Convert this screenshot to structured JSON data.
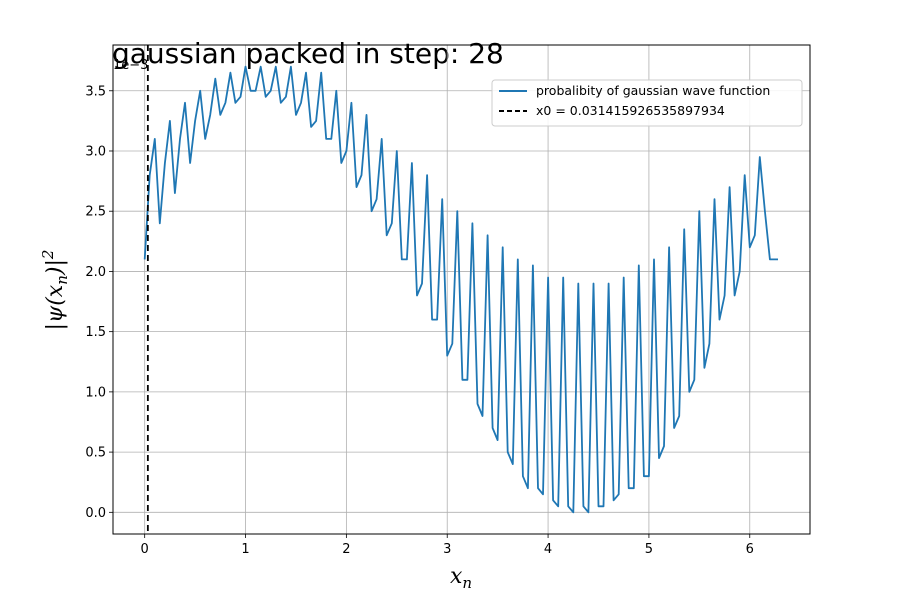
{
  "chart_data": {
    "type": "line",
    "title": "gaussian packed in step: 28",
    "xlabel": "x_n",
    "ylabel": "|ψ(x_n)|^2",
    "y_scale_note": "1e−3",
    "xlim": [
      -0.3142,
      6.5973
    ],
    "ylim": [
      -0.00018,
      0.00388
    ],
    "x_ticks": [
      0,
      1,
      2,
      3,
      4,
      5,
      6
    ],
    "y_ticks": [
      0.0,
      0.0005,
      0.001,
      0.0015,
      0.002,
      0.0025,
      0.003,
      0.0035
    ],
    "y_tick_labels": [
      "0.0",
      "0.5",
      "1.0",
      "1.5",
      "2.0",
      "2.5",
      "3.0",
      "3.5"
    ],
    "grid": true,
    "legend_position": "top-right",
    "series": [
      {
        "name": "probalibity of gaussian wave function",
        "color": "#1f77b4",
        "style": "solid",
        "x": [
          0.0,
          0.05,
          0.1,
          0.15,
          0.2,
          0.25,
          0.3,
          0.35,
          0.4,
          0.45,
          0.5,
          0.55,
          0.6,
          0.65,
          0.7,
          0.75,
          0.8,
          0.85,
          0.9,
          0.95,
          1.0,
          1.05,
          1.1,
          1.15,
          1.2,
          1.25,
          1.3,
          1.35,
          1.4,
          1.45,
          1.5,
          1.55,
          1.6,
          1.65,
          1.7,
          1.75,
          1.8,
          1.85,
          1.9,
          1.95,
          2.0,
          2.05,
          2.1,
          2.15,
          2.2,
          2.25,
          2.3,
          2.35,
          2.4,
          2.45,
          2.5,
          2.55,
          2.6,
          2.65,
          2.7,
          2.75,
          2.8,
          2.85,
          2.9,
          2.95,
          3.0,
          3.05,
          3.1,
          3.15,
          3.2,
          3.25,
          3.3,
          3.35,
          3.4,
          3.45,
          3.5,
          3.55,
          3.6,
          3.65,
          3.7,
          3.75,
          3.8,
          3.85,
          3.9,
          3.95,
          4.0,
          4.05,
          4.1,
          4.15,
          4.2,
          4.25,
          4.3,
          4.35,
          4.4,
          4.45,
          4.5,
          4.55,
          4.6,
          4.65,
          4.7,
          4.75,
          4.8,
          4.85,
          4.9,
          4.95,
          5.0,
          5.05,
          5.1,
          5.15,
          5.2,
          5.25,
          5.3,
          5.35,
          5.4,
          5.45,
          5.5,
          5.55,
          5.6,
          5.65,
          5.7,
          5.75,
          5.8,
          5.85,
          5.9,
          5.95,
          6.0,
          6.05,
          6.1,
          6.15,
          6.2,
          6.25,
          6.28
        ],
        "y": [
          0.0021,
          0.0028,
          0.0031,
          0.0024,
          0.0029,
          0.00325,
          0.00265,
          0.0031,
          0.0034,
          0.0029,
          0.00325,
          0.0035,
          0.0031,
          0.0033,
          0.0036,
          0.0033,
          0.0034,
          0.00365,
          0.0034,
          0.00345,
          0.0037,
          0.0035,
          0.0035,
          0.0037,
          0.00345,
          0.0035,
          0.0037,
          0.0034,
          0.00345,
          0.0037,
          0.0033,
          0.0034,
          0.00365,
          0.0032,
          0.00325,
          0.00365,
          0.0031,
          0.0031,
          0.0035,
          0.0029,
          0.003,
          0.0034,
          0.0027,
          0.0028,
          0.0033,
          0.0025,
          0.0026,
          0.0031,
          0.0023,
          0.0024,
          0.003,
          0.0021,
          0.0021,
          0.0029,
          0.0018,
          0.0019,
          0.0028,
          0.0016,
          0.0016,
          0.0026,
          0.0013,
          0.0014,
          0.0025,
          0.0011,
          0.0011,
          0.0024,
          0.0009,
          0.0008,
          0.0023,
          0.0007,
          0.0006,
          0.0022,
          0.0005,
          0.0004,
          0.0021,
          0.0003,
          0.0002,
          0.00205,
          0.0002,
          0.00015,
          0.00195,
          0.0001,
          5e-05,
          0.00195,
          5e-05,
          0.0,
          0.0019,
          5e-05,
          0.0,
          0.0019,
          5e-05,
          5e-05,
          0.0019,
          0.0001,
          0.00015,
          0.00195,
          0.0002,
          0.0002,
          0.00205,
          0.0003,
          0.0003,
          0.0021,
          0.00045,
          0.00055,
          0.0022,
          0.0007,
          0.0008,
          0.00235,
          0.001,
          0.0011,
          0.0025,
          0.0012,
          0.0014,
          0.0026,
          0.0016,
          0.0018,
          0.0027,
          0.0018,
          0.002,
          0.0028,
          0.0022,
          0.0023,
          0.00295,
          0.0025,
          0.0021,
          0.0021,
          0.0021
        ]
      }
    ],
    "vline": {
      "name": "x0 = 0.031415926535897934",
      "x": 0.031415926535897934,
      "color": "#000000",
      "style": "dashed"
    }
  }
}
